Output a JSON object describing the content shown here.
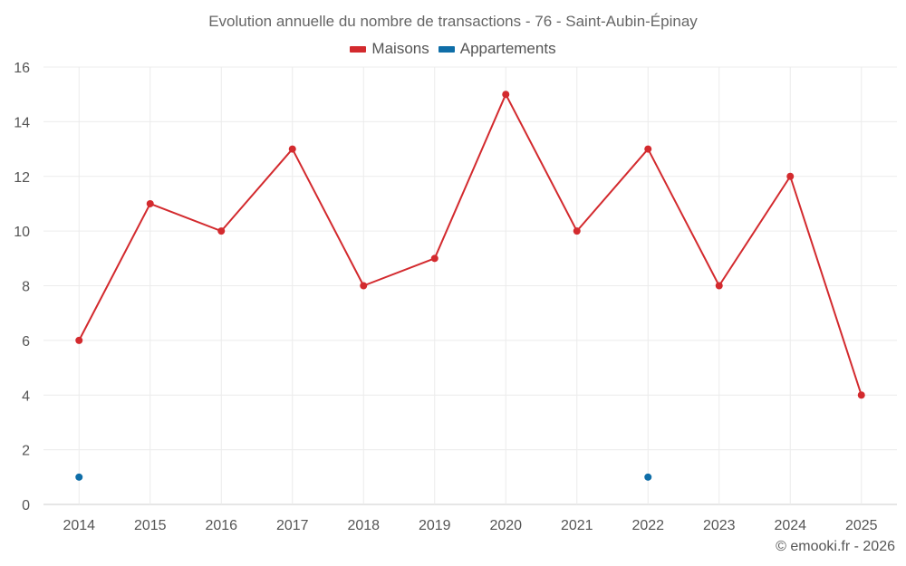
{
  "chart_data": {
    "type": "line",
    "title": "Evolution annuelle du nombre de transactions - 76 - Saint-Aubin-Épinay",
    "xlabel": "",
    "ylabel": "",
    "x": [
      "2014",
      "2015",
      "2016",
      "2017",
      "2018",
      "2019",
      "2020",
      "2021",
      "2022",
      "2023",
      "2024",
      "2025"
    ],
    "ylim": [
      0,
      16
    ],
    "yticks": [
      0,
      2,
      4,
      6,
      8,
      10,
      12,
      14,
      16
    ],
    "grid": true,
    "legend_position": "top-center",
    "series": [
      {
        "name": "Maisons",
        "color": "#d32a2e",
        "values": [
          6,
          11,
          10,
          13,
          8,
          9,
          15,
          10,
          13,
          8,
          12,
          4
        ]
      },
      {
        "name": "Appartements",
        "color": "#0f6ea8",
        "values": [
          1,
          null,
          null,
          null,
          null,
          null,
          null,
          null,
          1,
          null,
          null,
          null
        ]
      }
    ]
  },
  "credit": "© emooki.fr - 2026"
}
